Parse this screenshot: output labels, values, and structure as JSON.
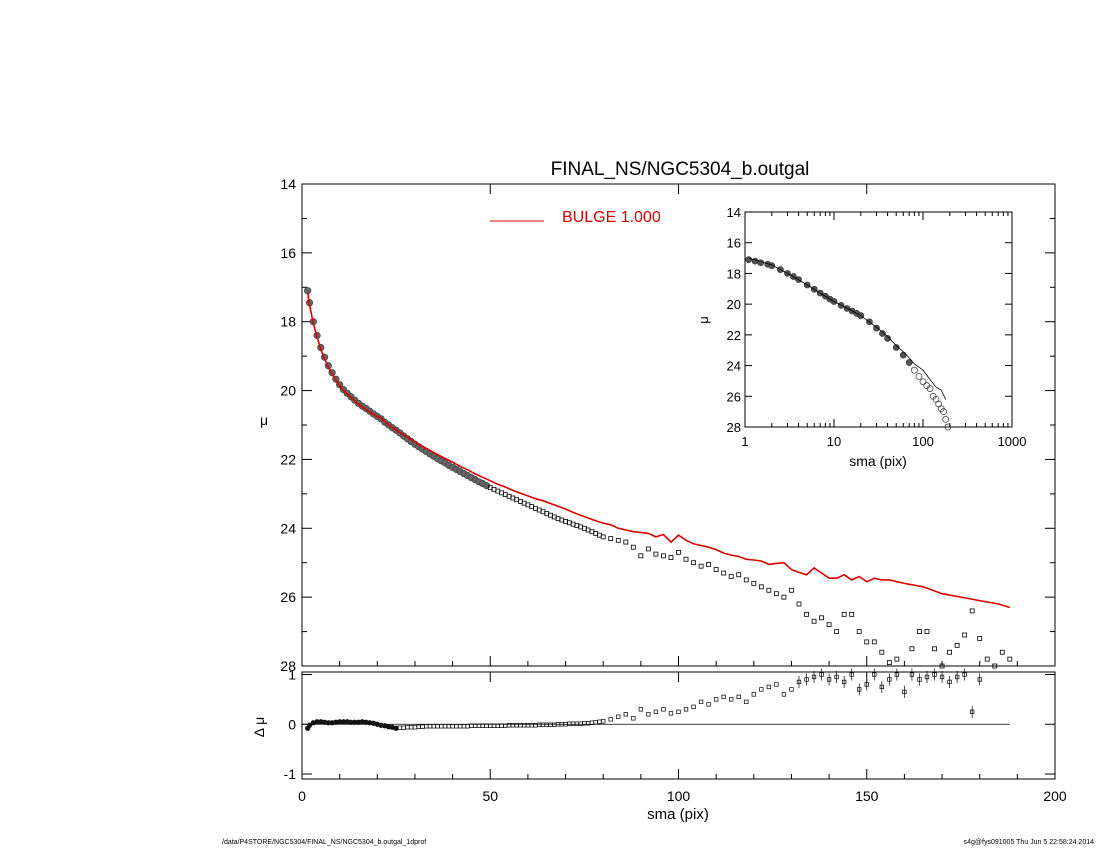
{
  "chart_data": [
    {
      "type": "line",
      "name": "main-profile",
      "title": "FINAL_NS/NGC5304_b.outgal",
      "xlabel": "",
      "ylabel": "μ",
      "xlim": [
        0,
        200
      ],
      "ylim": [
        28,
        14
      ],
      "y_inverted": true,
      "xticks": [
        0,
        50,
        100,
        150,
        200
      ],
      "yticks": [
        14,
        16,
        18,
        20,
        22,
        24,
        26,
        28
      ],
      "legend": {
        "label": "BULGE  1.000",
        "color": "#dd0000",
        "placement": "top-center"
      },
      "series": [
        {
          "name": "BULGE  1.000",
          "style": "line",
          "color": "#dd0000",
          "x": [
            1.5,
            2,
            3,
            4,
            5,
            6,
            7,
            8,
            9,
            10,
            11,
            12,
            13,
            14,
            15,
            16,
            17,
            18,
            19,
            20,
            21,
            22,
            23,
            24,
            25,
            26,
            28,
            30,
            32,
            34,
            36,
            38,
            40,
            42,
            44,
            46,
            48,
            50,
            52,
            54,
            56,
            58,
            60,
            62,
            64,
            66,
            68,
            70,
            72,
            74,
            76,
            78,
            80,
            82,
            84,
            86,
            88,
            90,
            92,
            94,
            96,
            98,
            100,
            102,
            104,
            106,
            108,
            110,
            112,
            114,
            116,
            118,
            120,
            122,
            124,
            126,
            128,
            130,
            132,
            134,
            136,
            138,
            140,
            142,
            144,
            146,
            148,
            150,
            152,
            154,
            156,
            158,
            160,
            165,
            170,
            175,
            180,
            185,
            188
          ],
          "y": [
            17.15,
            17.5,
            18.05,
            18.45,
            18.8,
            19.08,
            19.32,
            19.52,
            19.7,
            19.86,
            20.0,
            20.1,
            20.2,
            20.3,
            20.4,
            20.48,
            20.55,
            20.63,
            20.7,
            20.75,
            20.8,
            20.9,
            21.0,
            21.07,
            21.15,
            21.22,
            21.35,
            21.5,
            21.62,
            21.74,
            21.86,
            21.97,
            22.08,
            22.2,
            22.3,
            22.42,
            22.52,
            22.62,
            22.72,
            22.8,
            22.9,
            22.98,
            23.06,
            23.14,
            23.2,
            23.28,
            23.36,
            23.44,
            23.54,
            23.62,
            23.7,
            23.78,
            23.85,
            23.9,
            24.0,
            24.05,
            24.1,
            24.12,
            24.15,
            24.25,
            24.18,
            24.4,
            24.2,
            24.35,
            24.45,
            24.5,
            24.55,
            24.62,
            24.72,
            24.78,
            24.82,
            24.9,
            24.92,
            24.95,
            25.05,
            25.02,
            25.0,
            25.2,
            25.28,
            25.35,
            25.15,
            25.3,
            25.45,
            25.45,
            25.35,
            25.5,
            25.4,
            25.55,
            25.45,
            25.5,
            25.5,
            25.55,
            25.6,
            25.7,
            25.9,
            26.0,
            26.1,
            26.2,
            26.3
          ]
        },
        {
          "name": "data",
          "style": "points",
          "color": "#000000",
          "x": [
            1.5,
            2,
            3,
            4,
            5,
            6,
            7,
            8,
            9,
            10,
            11,
            12,
            13,
            14,
            15,
            16,
            17,
            18,
            19,
            20,
            21,
            22,
            23,
            24,
            25,
            26,
            27,
            28,
            29,
            30,
            31,
            32,
            33,
            34,
            35,
            36,
            37,
            38,
            39,
            40,
            41,
            42,
            43,
            44,
            45,
            46,
            47,
            48,
            49,
            50,
            51,
            52,
            53,
            54,
            55,
            56,
            57,
            58,
            59,
            60,
            61,
            62,
            63,
            64,
            65,
            66,
            67,
            68,
            69,
            70,
            71,
            72,
            73,
            74,
            75,
            76,
            77,
            78,
            79,
            80,
            82,
            84,
            86,
            88,
            90,
            92,
            94,
            96,
            98,
            100,
            102,
            104,
            106,
            108,
            110,
            112,
            114,
            116,
            118,
            120,
            122,
            124,
            126,
            128,
            130,
            132,
            134,
            136,
            138,
            140,
            142,
            144,
            146,
            148,
            150,
            152,
            154,
            156,
            158,
            160,
            162,
            164,
            166,
            168,
            170,
            172,
            174,
            176,
            178,
            180,
            182,
            184,
            186,
            188
          ],
          "y": [
            17.1,
            17.45,
            18.0,
            18.4,
            18.75,
            19.03,
            19.28,
            19.48,
            19.67,
            19.83,
            19.97,
            20.08,
            20.18,
            20.28,
            20.37,
            20.45,
            20.52,
            20.6,
            20.68,
            20.75,
            20.82,
            20.92,
            21.0,
            21.08,
            21.15,
            21.23,
            21.32,
            21.4,
            21.48,
            21.56,
            21.63,
            21.7,
            21.77,
            21.84,
            21.91,
            21.98,
            22.04,
            22.1,
            22.17,
            22.23,
            22.29,
            22.35,
            22.41,
            22.47,
            22.53,
            22.59,
            22.65,
            22.7,
            22.76,
            22.82,
            22.87,
            22.92,
            22.97,
            23.02,
            23.07,
            23.12,
            23.17,
            23.22,
            23.27,
            23.32,
            23.37,
            23.42,
            23.47,
            23.52,
            23.57,
            23.62,
            23.67,
            23.72,
            23.76,
            23.8,
            23.84,
            23.88,
            23.92,
            23.96,
            24.0,
            24.05,
            24.1,
            24.15,
            24.2,
            24.25,
            24.3,
            24.35,
            24.4,
            24.55,
            24.8,
            24.6,
            24.75,
            24.8,
            24.85,
            24.7,
            24.9,
            25.0,
            25.1,
            25.05,
            25.2,
            25.3,
            25.4,
            25.35,
            25.5,
            25.6,
            25.7,
            25.8,
            25.9,
            26.0,
            25.8,
            26.2,
            26.5,
            26.7,
            26.6,
            26.8,
            27.0,
            26.5,
            26.5,
            27.0,
            27.3,
            27.3,
            27.6,
            27.9,
            27.8,
            28.1,
            27.5,
            27.0,
            27.0,
            27.5,
            28.0,
            27.6,
            27.4,
            27.1,
            26.4,
            27.2,
            27.8,
            28.0,
            27.6,
            27.8
          ]
        }
      ]
    },
    {
      "type": "scatter",
      "name": "residuals",
      "xlabel": "sma (pix)",
      "ylabel": "Δ μ",
      "xlim": [
        0,
        200
      ],
      "ylim": [
        -1.1,
        1.05
      ],
      "xticks": [
        0,
        50,
        100,
        150,
        200
      ],
      "yticks": [
        -1,
        0,
        1
      ],
      "zero_line": true,
      "series": [
        {
          "name": "residual",
          "style": "points",
          "color": "#000000",
          "x": [
            1.5,
            2,
            3,
            4,
            5,
            6,
            7,
            8,
            9,
            10,
            11,
            12,
            13,
            14,
            15,
            16,
            17,
            18,
            19,
            20,
            21,
            22,
            23,
            24,
            25,
            26,
            27,
            28,
            29,
            30,
            31,
            32,
            33,
            34,
            35,
            36,
            37,
            38,
            39,
            40,
            41,
            42,
            43,
            44,
            45,
            46,
            47,
            48,
            49,
            50,
            51,
            52,
            53,
            54,
            55,
            56,
            57,
            58,
            59,
            60,
            61,
            62,
            63,
            64,
            65,
            66,
            67,
            68,
            69,
            70,
            71,
            72,
            73,
            74,
            75,
            76,
            77,
            78,
            79,
            80,
            82,
            84,
            86,
            88,
            90,
            92,
            94,
            96,
            98,
            100,
            102,
            104,
            106,
            108,
            110,
            112,
            114,
            116,
            118,
            120,
            122,
            124,
            126,
            128,
            130,
            132,
            134,
            136,
            138,
            140,
            142,
            144,
            146,
            148,
            150,
            152,
            154,
            156,
            158,
            160,
            162,
            164,
            166,
            168,
            170,
            172,
            174,
            176,
            178,
            180
          ],
          "y": [
            -0.08,
            -0.02,
            0.03,
            0.05,
            0.05,
            0.04,
            0.03,
            0.03,
            0.04,
            0.05,
            0.05,
            0.05,
            0.04,
            0.04,
            0.04,
            0.05,
            0.04,
            0.03,
            0.02,
            0.0,
            -0.02,
            -0.03,
            -0.05,
            -0.06,
            -0.08,
            -0.07,
            -0.07,
            -0.06,
            -0.06,
            -0.06,
            -0.05,
            -0.05,
            -0.04,
            -0.04,
            -0.04,
            -0.04,
            -0.04,
            -0.04,
            -0.04,
            -0.04,
            -0.04,
            -0.04,
            -0.04,
            -0.04,
            -0.03,
            -0.03,
            -0.03,
            -0.03,
            -0.03,
            -0.03,
            -0.03,
            -0.03,
            -0.03,
            -0.03,
            -0.02,
            -0.02,
            -0.02,
            -0.02,
            -0.02,
            -0.02,
            -0.02,
            -0.02,
            -0.01,
            -0.01,
            -0.01,
            -0.01,
            -0.01,
            0.0,
            0.0,
            0.0,
            0.01,
            0.01,
            0.01,
            0.01,
            0.02,
            0.02,
            0.03,
            0.04,
            0.05,
            0.06,
            0.1,
            0.15,
            0.2,
            0.12,
            0.3,
            0.2,
            0.25,
            0.3,
            0.22,
            0.25,
            0.3,
            0.35,
            0.45,
            0.4,
            0.5,
            0.55,
            0.5,
            0.55,
            0.45,
            0.6,
            0.7,
            0.75,
            0.8,
            0.6,
            0.7,
            0.85,
            0.9,
            0.95,
            1.0,
            0.9,
            0.95,
            0.85,
            1.0,
            0.7,
            0.8,
            1.0,
            0.75,
            0.9,
            1.0,
            0.65,
            1.0,
            0.9,
            0.95,
            1.0,
            0.95,
            0.85,
            0.95,
            1.0,
            0.25,
            0.9
          ]
        }
      ]
    },
    {
      "type": "scatter",
      "name": "inset-log",
      "xlabel": "sma (pix)",
      "ylabel": "μ",
      "x_scale": "log",
      "xlim": [
        1,
        1000
      ],
      "ylim": [
        28,
        14
      ],
      "y_inverted": true,
      "xticks": [
        1,
        10,
        100,
        1000
      ],
      "yticks": [
        14,
        16,
        18,
        20,
        22,
        24,
        26,
        28
      ],
      "series": [
        {
          "name": "inset-data",
          "style": "points",
          "color": "#000000",
          "x": [
            1.1,
            1.3,
            1.5,
            1.8,
            2,
            2.5,
            3,
            3.5,
            4,
            5,
            6,
            7,
            8,
            9,
            10,
            12,
            14,
            16,
            18,
            20,
            25,
            30,
            35,
            40,
            50,
            60,
            70,
            80,
            90,
            100,
            110,
            120,
            130,
            140,
            150,
            160,
            170,
            180,
            190
          ],
          "y": [
            17.1,
            17.2,
            17.3,
            17.4,
            17.5,
            17.75,
            18.0,
            18.2,
            18.4,
            18.75,
            19.03,
            19.28,
            19.48,
            19.67,
            19.83,
            20.08,
            20.28,
            20.45,
            20.6,
            20.75,
            21.15,
            21.56,
            21.91,
            22.23,
            22.82,
            23.32,
            23.8,
            24.3,
            24.7,
            25.05,
            25.3,
            25.5,
            26.0,
            26.2,
            26.5,
            26.8,
            27.0,
            27.5,
            28.0
          ]
        },
        {
          "name": "inset-model",
          "style": "line",
          "color": "#000000",
          "x": [
            1.1,
            2,
            3,
            5,
            7,
            10,
            15,
            20,
            30,
            40,
            50,
            60,
            70,
            80,
            90,
            100,
            120,
            140,
            160,
            180
          ],
          "y": [
            17.0,
            17.45,
            18.0,
            18.75,
            19.28,
            19.83,
            20.35,
            20.75,
            21.5,
            22.1,
            22.7,
            23.1,
            23.5,
            23.9,
            24.1,
            24.3,
            24.9,
            25.4,
            25.6,
            26.2
          ]
        }
      ]
    }
  ],
  "footer": {
    "left": "/data/P4STORE/NGC5304/FINAL_NS/NGC5304_b.outgal_1dprof",
    "right": "s4g@fys091005  Thu Jun  5 22:58:24 2014"
  }
}
